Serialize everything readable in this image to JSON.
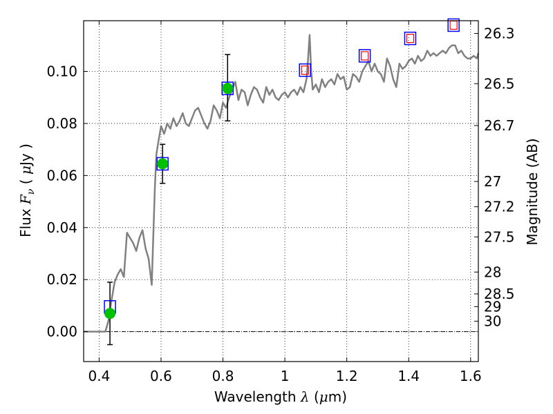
{
  "chart_data": {
    "type": "line",
    "xlabel": {
      "prefix": "Wavelength",
      "symbol": "λ",
      "unit_open": " (",
      "unit_mu": "μ",
      "unit_rest": "m)"
    },
    "ylabel": {
      "prefix": "Flux",
      "symbol": "F",
      "subscript": "ν",
      "unit_open": "( ",
      "unit_mu": "μ",
      "unit_rest": "Jy )"
    },
    "y2label": "Magnitude (AB)",
    "xlim": [
      0.35,
      1.625
    ],
    "ylim": [
      -0.0115,
      0.1195
    ],
    "grid": true,
    "legend": "none",
    "x_ticks": [
      {
        "value": 0.4,
        "label": "0.4"
      },
      {
        "value": 0.6,
        "label": "0.6"
      },
      {
        "value": 0.8,
        "label": "0.8"
      },
      {
        "value": 1.0,
        "label": "1"
      },
      {
        "value": 1.2,
        "label": "1.2"
      },
      {
        "value": 1.4,
        "label": "1.4"
      },
      {
        "value": 1.6,
        "label": "1.6"
      }
    ],
    "y_ticks": [
      {
        "value": 0.0,
        "label": "0.00"
      },
      {
        "value": 0.02,
        "label": "0.02"
      },
      {
        "value": 0.04,
        "label": "0.04"
      },
      {
        "value": 0.06,
        "label": "0.06"
      },
      {
        "value": 0.08,
        "label": "0.08"
      },
      {
        "value": 0.1,
        "label": "0.10"
      }
    ],
    "magnitude_ticks": [
      {
        "flux": 0.1146,
        "label": "26.3"
      },
      {
        "flux": 0.0953,
        "label": "26.5"
      },
      {
        "flux": 0.0792,
        "label": "26.7"
      },
      {
        "flux": 0.0577,
        "label": "27"
      },
      {
        "flux": 0.048,
        "label": "27.2"
      },
      {
        "flux": 0.0364,
        "label": "27.5"
      },
      {
        "flux": 0.0229,
        "label": "28"
      },
      {
        "flux": 0.0145,
        "label": "28.5"
      },
      {
        "flux": 0.0096,
        "label": "29"
      },
      {
        "flux": 0.004,
        "label": "30"
      }
    ],
    "zero_line": 0.0,
    "series": [
      {
        "kind": "model_sed",
        "color": "#808080",
        "x": [
          0.35,
          0.4,
          0.42,
          0.425,
          0.43,
          0.44,
          0.45,
          0.46,
          0.47,
          0.48,
          0.49,
          0.5,
          0.51,
          0.52,
          0.53,
          0.54,
          0.55,
          0.56,
          0.57,
          0.575,
          0.58,
          0.585,
          0.59,
          0.6,
          0.61,
          0.62,
          0.63,
          0.64,
          0.65,
          0.66,
          0.67,
          0.68,
          0.69,
          0.7,
          0.71,
          0.72,
          0.73,
          0.74,
          0.75,
          0.76,
          0.77,
          0.78,
          0.79,
          0.8,
          0.81,
          0.82,
          0.83,
          0.84,
          0.85,
          0.86,
          0.87,
          0.88,
          0.89,
          0.9,
          0.91,
          0.92,
          0.93,
          0.94,
          0.95,
          0.96,
          0.97,
          0.98,
          0.99,
          1.0,
          1.01,
          1.02,
          1.03,
          1.04,
          1.05,
          1.06,
          1.07,
          1.075,
          1.08,
          1.085,
          1.09,
          1.1,
          1.11,
          1.12,
          1.13,
          1.14,
          1.15,
          1.16,
          1.17,
          1.18,
          1.19,
          1.2,
          1.21,
          1.22,
          1.23,
          1.24,
          1.25,
          1.26,
          1.27,
          1.28,
          1.29,
          1.3,
          1.31,
          1.32,
          1.33,
          1.34,
          1.35,
          1.36,
          1.37,
          1.38,
          1.39,
          1.4,
          1.41,
          1.42,
          1.43,
          1.44,
          1.45,
          1.46,
          1.47,
          1.48,
          1.49,
          1.5,
          1.51,
          1.52,
          1.53,
          1.54,
          1.55,
          1.56,
          1.57,
          1.58,
          1.59,
          1.6,
          1.61,
          1.62,
          1.625
        ],
        "y": [
          0.0,
          0.0,
          0.0,
          0.002,
          0.004,
          0.012,
          0.019,
          0.022,
          0.024,
          0.021,
          0.038,
          0.036,
          0.034,
          0.031,
          0.036,
          0.039,
          0.032,
          0.028,
          0.018,
          0.037,
          0.055,
          0.068,
          0.072,
          0.079,
          0.076,
          0.08,
          0.078,
          0.082,
          0.079,
          0.081,
          0.084,
          0.08,
          0.079,
          0.082,
          0.085,
          0.086,
          0.083,
          0.08,
          0.078,
          0.081,
          0.087,
          0.085,
          0.082,
          0.088,
          0.086,
          0.09,
          0.093,
          0.096,
          0.089,
          0.093,
          0.092,
          0.087,
          0.091,
          0.094,
          0.093,
          0.09,
          0.088,
          0.094,
          0.091,
          0.093,
          0.09,
          0.089,
          0.091,
          0.092,
          0.09,
          0.092,
          0.093,
          0.091,
          0.094,
          0.092,
          0.097,
          0.105,
          0.114,
          0.1,
          0.093,
          0.095,
          0.092,
          0.097,
          0.094,
          0.096,
          0.097,
          0.095,
          0.099,
          0.097,
          0.098,
          0.093,
          0.094,
          0.099,
          0.098,
          0.096,
          0.1,
          0.102,
          0.104,
          0.1,
          0.103,
          0.1,
          0.099,
          0.096,
          0.105,
          0.102,
          0.097,
          0.094,
          0.103,
          0.101,
          0.102,
          0.104,
          0.105,
          0.103,
          0.106,
          0.104,
          0.105,
          0.108,
          0.106,
          0.107,
          0.106,
          0.107,
          0.108,
          0.107,
          0.109,
          0.11,
          0.11,
          0.107,
          0.108,
          0.106,
          0.105,
          0.105,
          0.106,
          0.105,
          0.107
        ]
      },
      {
        "kind": "photometry",
        "color": "#00c000",
        "x": [
          0.435,
          0.605,
          0.815
        ],
        "y": [
          0.007,
          0.0645,
          0.0935
        ],
        "err_low": [
          -0.005,
          0.057,
          0.081
        ],
        "err_high": [
          0.019,
          0.072,
          0.1065
        ]
      },
      {
        "kind": "model_boxes",
        "color": "#0000ff",
        "x": [
          0.435,
          0.605,
          0.815,
          1.065,
          1.258,
          1.405,
          1.545
        ],
        "y": [
          0.0095,
          0.0645,
          0.0935,
          0.1005,
          0.106,
          0.1127,
          0.1178
        ]
      },
      {
        "kind": "model_boxes_inner",
        "color": "#ff0000",
        "x": [
          1.065,
          1.258,
          1.405,
          1.545
        ],
        "y": [
          0.1005,
          0.106,
          0.1127,
          0.1178
        ]
      }
    ]
  }
}
